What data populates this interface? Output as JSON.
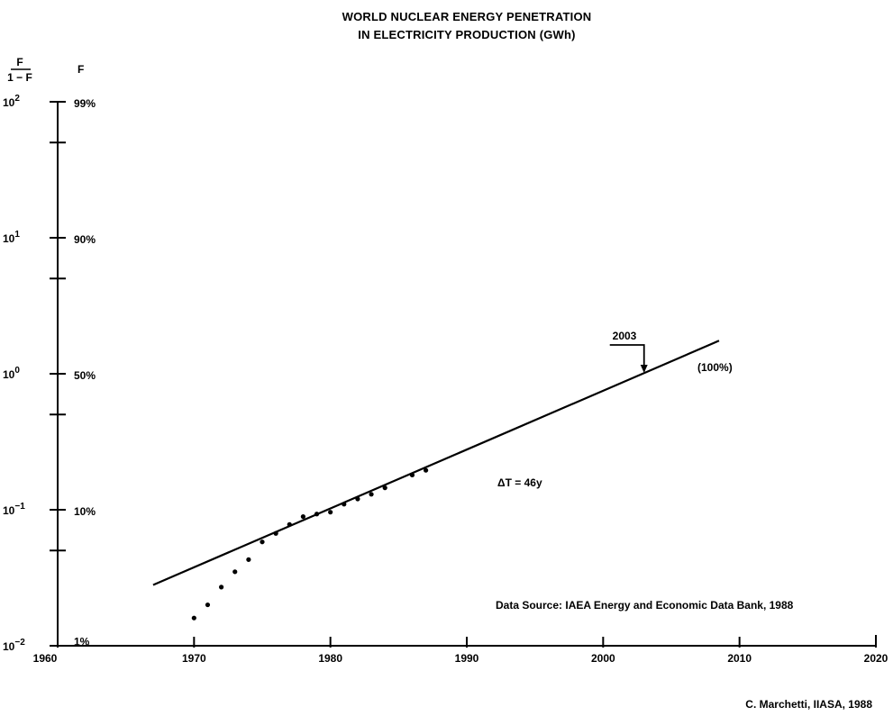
{
  "chart_data": {
    "type": "scatter",
    "title": [
      "WORLD  NUCLEAR ENERGY PENETRATION",
      "IN ELECTRICITY PRODUCTION (GWh)"
    ],
    "ylabel_ratio": {
      "num": "F",
      "den": "1 − F"
    },
    "ylabel_share": "F",
    "scale": "logit",
    "xlim": [
      1960,
      2020
    ],
    "ylim": [
      0.01,
      100
    ],
    "x_ticks": [
      "1960",
      "1970",
      "1980",
      "1990",
      "2000",
      "2010",
      "2020"
    ],
    "y_ticks_ratio": [
      {
        "base": "10",
        "exp": "2",
        "value": 100
      },
      {
        "base": "10",
        "exp": "1",
        "value": 10
      },
      {
        "base": "10",
        "exp": "0",
        "value": 1
      },
      {
        "base": "10",
        "exp": "−1",
        "value": 0.1
      },
      {
        "base": "10",
        "exp": "−2",
        "value": 0.01
      }
    ],
    "y_ticks_share": [
      {
        "label": "99%",
        "ratio": 100
      },
      {
        "label": "90%",
        "ratio": 10
      },
      {
        "label": "50%",
        "ratio": 1
      },
      {
        "label": "10%",
        "ratio": 0.1
      },
      {
        "label": "1%",
        "ratio": 0.011
      }
    ],
    "points": [
      {
        "x": 1970,
        "y": 0.016
      },
      {
        "x": 1971,
        "y": 0.02
      },
      {
        "x": 1972,
        "y": 0.027
      },
      {
        "x": 1973,
        "y": 0.035
      },
      {
        "x": 1974,
        "y": 0.043
      },
      {
        "x": 1975,
        "y": 0.058
      },
      {
        "x": 1976,
        "y": 0.067
      },
      {
        "x": 1977,
        "y": 0.078
      },
      {
        "x": 1978,
        "y": 0.089
      },
      {
        "x": 1979,
        "y": 0.093
      },
      {
        "x": 1980,
        "y": 0.096
      },
      {
        "x": 1981,
        "y": 0.11
      },
      {
        "x": 1982,
        "y": 0.12
      },
      {
        "x": 1983,
        "y": 0.13
      },
      {
        "x": 1984,
        "y": 0.145
      },
      {
        "x": 1986,
        "y": 0.18
      },
      {
        "x": 1987,
        "y": 0.195
      }
    ],
    "fit_line": [
      {
        "x": 1967,
        "y": 0.028
      },
      {
        "x": 2008.5,
        "y": 1.75
      }
    ],
    "annotations": {
      "marker_year": "2003",
      "marker_point": {
        "x": 2003,
        "y": 1.0
      },
      "saturation": "(100%)",
      "delta_t": "ΔT  =  46y",
      "source": "Data Source:  IAEA Energy and Economic Data Bank, 1988",
      "credit": "C. Marchetti, IIASA, 1988"
    }
  }
}
